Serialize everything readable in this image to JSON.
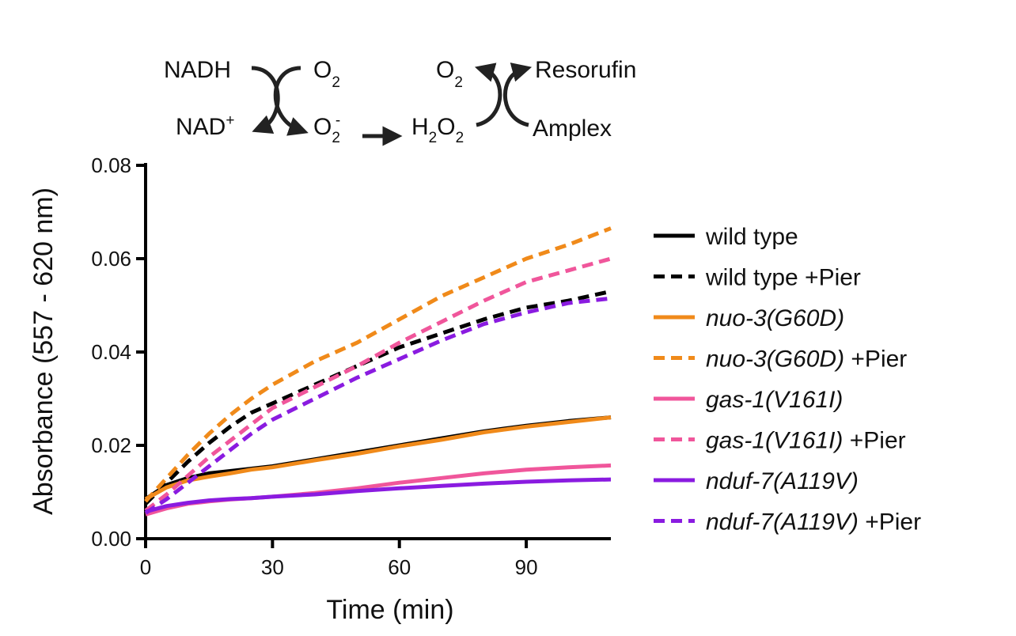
{
  "scheme": {
    "nadh": "NADH",
    "nad": "NAD",
    "nad_sup": "+",
    "o2_top": "O",
    "o2_top_sub": "2",
    "superoxide": "O",
    "superoxide_sub": "2",
    "superoxide_sup": "-",
    "h2o2_h": "H",
    "h2o2_sub1": "2",
    "h2o2_o": "O",
    "h2o2_sub2": "2",
    "o2_right": "O",
    "o2_right_sub": "2",
    "resorufin": "Resorufin",
    "amplex": "Amplex"
  },
  "chart_data": {
    "type": "line",
    "xlabel": "Time (min)",
    "ylabel": "Absorbance (557 - 620 nm)",
    "xlim": [
      0,
      110
    ],
    "ylim": [
      0,
      0.08
    ],
    "xticks": [
      0,
      30,
      60,
      90
    ],
    "xtick_labels": [
      "0",
      "30",
      "60",
      "90"
    ],
    "yticks": [
      0,
      0.02,
      0.04,
      0.06,
      0.08
    ],
    "ytick_labels": [
      "0.00",
      "0.02",
      "0.04",
      "0.06",
      "0.08"
    ],
    "legend_position": "right",
    "x": [
      0,
      5,
      10,
      15,
      20,
      25,
      30,
      40,
      50,
      60,
      70,
      80,
      90,
      100,
      110
    ],
    "series": [
      {
        "name": "wild type",
        "italic": "",
        "suffix": "",
        "color": "#000000",
        "dashed": false,
        "values": [
          0.0085,
          0.0115,
          0.013,
          0.014,
          0.0145,
          0.015,
          0.0155,
          0.017,
          0.0185,
          0.02,
          0.0215,
          0.023,
          0.0242,
          0.0252,
          0.026
        ]
      },
      {
        "name": "wild type +Pier",
        "italic": "",
        "suffix": "",
        "color": "#000000",
        "dashed": true,
        "values": [
          0.0075,
          0.012,
          0.0165,
          0.0205,
          0.024,
          0.027,
          0.029,
          0.033,
          0.037,
          0.041,
          0.044,
          0.047,
          0.0495,
          0.051,
          0.053
        ]
      },
      {
        "name": "",
        "italic": "nuo-3(G60D)",
        "suffix": "",
        "color": "#f08a1a",
        "dashed": false,
        "values": [
          0.0085,
          0.011,
          0.0125,
          0.0133,
          0.014,
          0.0148,
          0.0153,
          0.0168,
          0.0182,
          0.0198,
          0.0212,
          0.0228,
          0.024,
          0.025,
          0.026
        ]
      },
      {
        "name": "",
        "italic": "nuo-3(G60D)",
        "suffix": " +Pier",
        "color": "#f08a1a",
        "dashed": true,
        "values": [
          0.008,
          0.013,
          0.018,
          0.0225,
          0.0265,
          0.03,
          0.033,
          0.038,
          0.042,
          0.047,
          0.052,
          0.056,
          0.06,
          0.063,
          0.0665
        ]
      },
      {
        "name": "",
        "italic": "gas-1(V161I)",
        "suffix": "",
        "color": "#f0569b",
        "dashed": false,
        "values": [
          0.0052,
          0.0065,
          0.0075,
          0.008,
          0.0084,
          0.0087,
          0.009,
          0.0098,
          0.0108,
          0.012,
          0.013,
          0.014,
          0.0148,
          0.0153,
          0.0157
        ]
      },
      {
        "name": "",
        "italic": "gas-1(V161I)",
        "suffix": " +Pier",
        "color": "#f0569b",
        "dashed": true,
        "values": [
          0.006,
          0.0095,
          0.0135,
          0.0175,
          0.021,
          0.0245,
          0.028,
          0.0325,
          0.037,
          0.042,
          0.0465,
          0.051,
          0.055,
          0.0575,
          0.06
        ]
      },
      {
        "name": "",
        "italic": "nduf-7(A119V)",
        "suffix": "",
        "color": "#8a1be0",
        "dashed": false,
        "values": [
          0.0058,
          0.007,
          0.0077,
          0.0082,
          0.0085,
          0.0087,
          0.009,
          0.0095,
          0.0102,
          0.0108,
          0.0113,
          0.0118,
          0.0122,
          0.0125,
          0.0127
        ]
      },
      {
        "name": "",
        "italic": "nduf-7(A119V)",
        "suffix": " +Pier",
        "color": "#8a1be0",
        "dashed": true,
        "values": [
          0.0055,
          0.0085,
          0.012,
          0.0155,
          0.019,
          0.0225,
          0.0255,
          0.03,
          0.0345,
          0.0385,
          0.0425,
          0.046,
          0.0485,
          0.0505,
          0.0515
        ]
      }
    ]
  }
}
